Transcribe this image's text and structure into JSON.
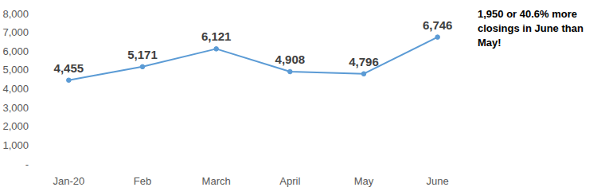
{
  "chart_data": {
    "type": "line",
    "categories": [
      "Jan-20",
      "Feb",
      "March",
      "April",
      "May",
      "June"
    ],
    "values": [
      4455,
      5171,
      6121,
      4908,
      4796,
      6746
    ],
    "value_labels": [
      "4,455",
      "5,171",
      "6,121",
      "4,908",
      "4,796",
      "6,746"
    ],
    "color": "#5b9bd5",
    "ylim": [
      0,
      8000
    ],
    "yticks": [
      {
        "value": 0,
        "label": "-"
      },
      {
        "value": 1000,
        "label": "1,000"
      },
      {
        "value": 2000,
        "label": "2,000"
      },
      {
        "value": 3000,
        "label": "3,000"
      },
      {
        "value": 4000,
        "label": "4,000"
      },
      {
        "value": 5000,
        "label": "5,000"
      },
      {
        "value": 6000,
        "label": "6,000"
      },
      {
        "value": 7000,
        "label": "7,000"
      },
      {
        "value": 8000,
        "label": "8,000"
      }
    ],
    "grid": false,
    "data_labels": true,
    "marker": "circle",
    "line_style": "solid",
    "annotation": [
      "1,950 or 40.6% more",
      "closings in June than",
      "May!"
    ]
  }
}
